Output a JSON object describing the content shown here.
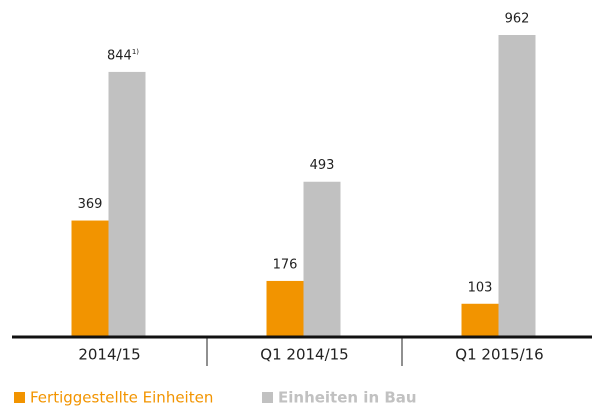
{
  "chart_data": {
    "type": "bar",
    "categories": [
      "2014/15",
      "Q1 2014/15",
      "Q1 2015/16"
    ],
    "series": [
      {
        "name": "Fertiggestellte Einheiten",
        "color": "#f29400",
        "values": [
          369,
          176,
          103
        ]
      },
      {
        "name": "Einheiten in Bau",
        "color": "#c1c1c1",
        "values": [
          844,
          493,
          962
        ]
      }
    ],
    "annotations": [
      {
        "text": "1)",
        "series": 1,
        "index": 0
      }
    ],
    "legend": "bottom-left"
  }
}
